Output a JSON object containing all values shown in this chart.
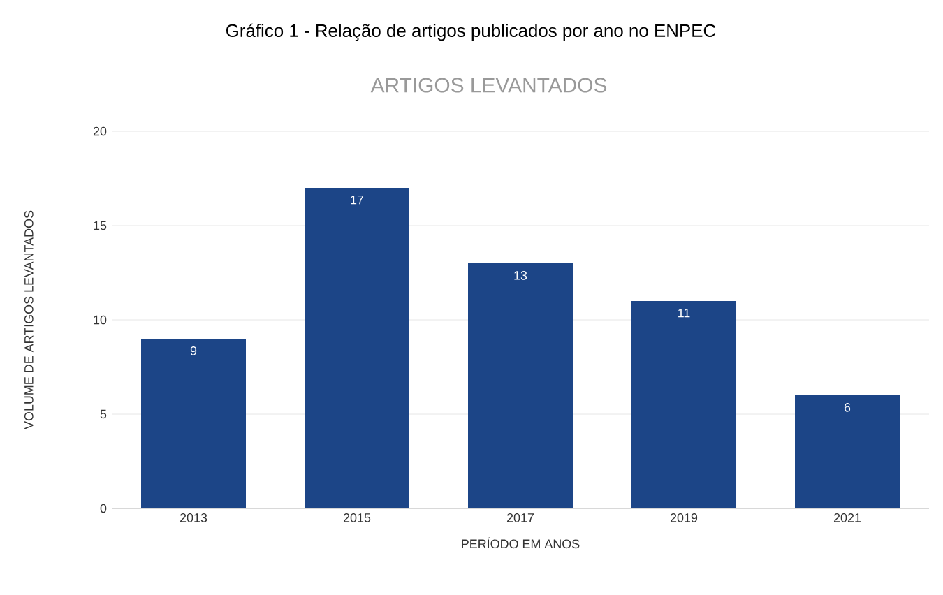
{
  "chart_data": {
    "type": "bar",
    "title": "Gráfico 1 - Relação de artigos publicados por ano no ENPEC",
    "subtitle": "ARTIGOS LEVANTADOS",
    "xlabel": "PERÍODO EM ANOS",
    "ylabel": "VOLUME DE ARTIGOS LEVANTADOS",
    "categories": [
      "2013",
      "2015",
      "2017",
      "2019",
      "2021"
    ],
    "values": [
      9,
      17,
      13,
      11,
      6
    ],
    "color": "#1c4587",
    "ylim": [
      0,
      20
    ],
    "yticks": [
      0,
      5,
      10,
      15,
      20
    ],
    "grid": "y",
    "data_labels": true
  }
}
